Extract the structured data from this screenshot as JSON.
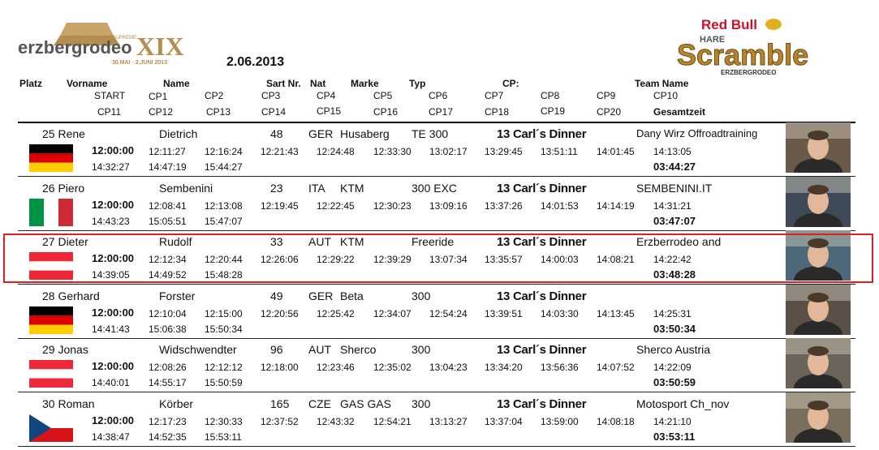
{
  "date": "2.06.2013",
  "logos": {
    "left": {
      "text": "erzbergrodeo",
      "numeral": "XIX",
      "tag": "XTREME ENDURO SUPREME",
      "dates": "30.MAI - 2.JUNI 2013"
    },
    "right": {
      "brand": "Red Bull",
      "line1": "HARE",
      "line2": "Scramble",
      "line3": "ERZBERGRODEO"
    }
  },
  "headers": {
    "row1": [
      "Platz",
      "Vorname",
      "Name",
      "Sart Nr.",
      "Nat",
      "Marke",
      "Typ",
      "CP:",
      "Team Name"
    ],
    "row2": [
      "START",
      "CP1",
      "CP2",
      "CP3",
      "CP4",
      "CP5",
      "CP6",
      "CP7",
      "CP8",
      "CP9",
      "CP10"
    ],
    "row3": [
      "CP11",
      "CP12",
      "CP13",
      "CP14",
      "CP15",
      "CP16",
      "CP17",
      "CP18",
      "CP19",
      "CP20",
      "Gesamtzeit"
    ]
  },
  "rows": [
    {
      "place_first": "25 Rene",
      "last": "Dietrich",
      "nr": "48",
      "nat": "GER",
      "brand": "Husaberg",
      "type": "TE 300",
      "cp": "13 Carl´s Dinner",
      "team": "Dany Wirz Offroadtraining",
      "start": "12:00:00",
      "times2": [
        "12:11:27",
        "12:16:24",
        "12:21:43",
        "12:24:48",
        "12:33:30",
        "13:02:17",
        "13:29:45",
        "13:51:11",
        "14:01:45",
        "14:13:05"
      ],
      "times3": [
        "14:32:27",
        "14:47:19",
        "15:44:27"
      ],
      "total": "03:44:27",
      "flag": "germany"
    },
    {
      "place_first": "26 Piero",
      "last": "Sembenini",
      "nr": "23",
      "nat": "ITA",
      "brand": "KTM",
      "type": "300 EXC",
      "cp": "13 Carl´s Dinner",
      "team": "SEMBENINI.IT",
      "start": "12:00:00",
      "times2": [
        "12:08:41",
        "12:13:08",
        "12:19:45",
        "12:22:45",
        "12:30:23",
        "13:09:16",
        "13:37:26",
        "14:01:53",
        "14:14:19",
        "14:31:21"
      ],
      "times3": [
        "14:43:23",
        "15:05:51",
        "15:47:07"
      ],
      "total": "03:47:07",
      "flag": "italy"
    },
    {
      "place_first": "27 Dieter",
      "last": "Rudolf",
      "nr": "33",
      "nat": "AUT",
      "brand": "KTM",
      "type": "Freeride",
      "cp": "13 Carl´s Dinner",
      "team": "Erzberrodeo and",
      "start": "12:00:00",
      "times2": [
        "12:12:34",
        "12:20:44",
        "12:26:06",
        "12:29:22",
        "12:39:29",
        "13:07:34",
        "13:35:57",
        "14:00:03",
        "14:08:21",
        "14:22:42"
      ],
      "times3": [
        "14:39:05",
        "14:49:52",
        "15:48:28"
      ],
      "total": "03:48:28",
      "flag": "austria"
    },
    {
      "place_first": "28 Gerhard",
      "last": "Forster",
      "nr": "49",
      "nat": "GER",
      "brand": "Beta",
      "type": "300",
      "cp": "13 Carl´s Dinner",
      "team": "",
      "start": "12:00:00",
      "times2": [
        "12:10:04",
        "12:15:00",
        "12:20:56",
        "12:25:42",
        "12:34:07",
        "12:54:24",
        "13:39:51",
        "14:03:30",
        "14:13:45",
        "14:25:31"
      ],
      "times3": [
        "14:41:43",
        "15:06:38",
        "15:50:34"
      ],
      "total": "03:50:34",
      "flag": "germany"
    },
    {
      "place_first": "29 Jonas",
      "last": "Widschwendter",
      "nr": "96",
      "nat": "AUT",
      "brand": "Sherco",
      "type": "300",
      "cp": "13 Carl´s Dinner",
      "team": "Sherco Austria",
      "start": "12:00:00",
      "times2": [
        "12:08:26",
        "12:12:12",
        "12:18:00",
        "12:23:46",
        "12:35:02",
        "13:04:23",
        "13:34:20",
        "13:56:36",
        "14:07:52",
        "14:22:09"
      ],
      "times3": [
        "14:40:01",
        "14:55:17",
        "15:50:59"
      ],
      "total": "03:50:59",
      "flag": "austria"
    },
    {
      "place_first": "30 Roman",
      "last": "Körber",
      "nr": "165",
      "nat": "CZE",
      "brand": "GAS GAS",
      "type": "300",
      "cp": "13 Carl´s Dinner",
      "team": "Motosport Ch_nov",
      "start": "12:00:00",
      "times2": [
        "12:17:23",
        "12:30:33",
        "12:37:52",
        "12:43:32",
        "12:54:21",
        "13:13:27",
        "13:37:04",
        "13:59:00",
        "14:08:18",
        "14:21:10"
      ],
      "times3": [
        "14:38:47",
        "14:52:35",
        "15:53:11"
      ],
      "total": "03:53:11",
      "flag": "czech"
    }
  ],
  "colors": {
    "highlight": "#e02020"
  }
}
